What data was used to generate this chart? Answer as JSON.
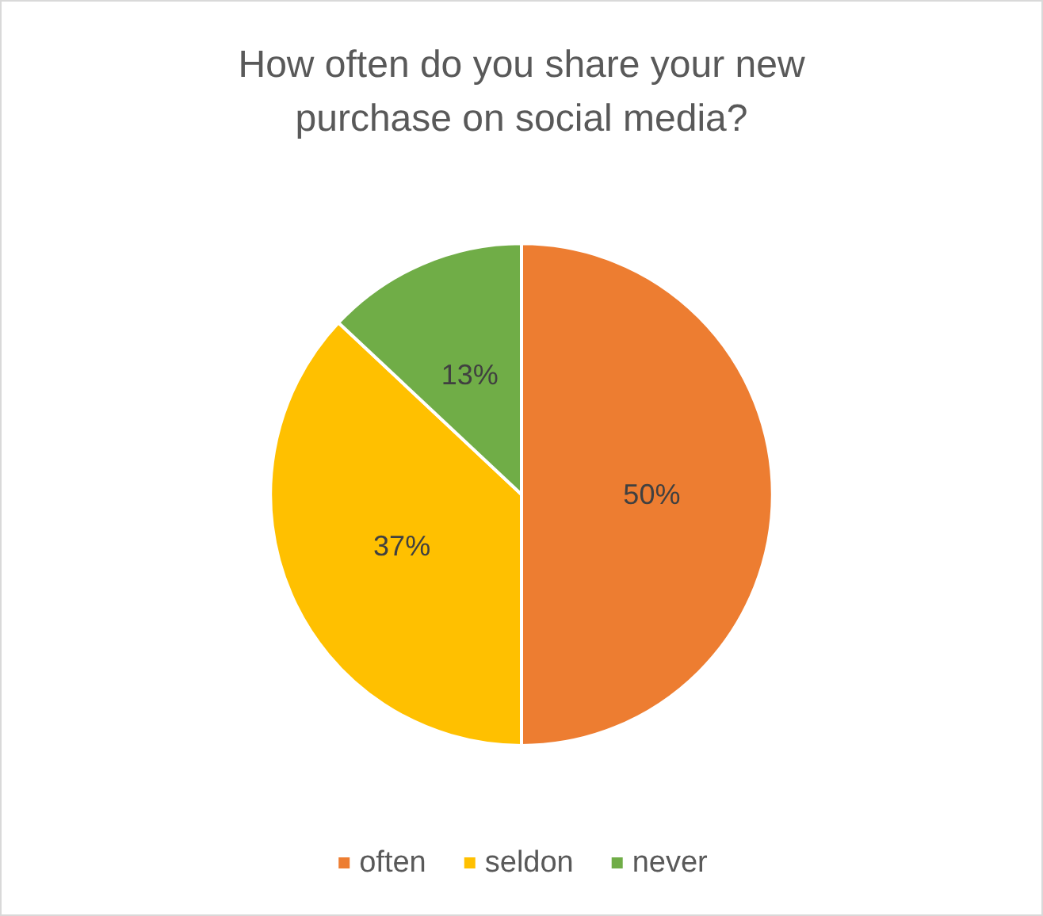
{
  "chart_data": {
    "type": "pie",
    "title": "How often do you share your new\npurchase on social media?",
    "categories": [
      "often",
      "seldon",
      "never"
    ],
    "values": [
      50,
      37,
      13
    ],
    "colors": [
      "#ed7d31",
      "#ffc000",
      "#70ad47"
    ],
    "value_labels": [
      "50%",
      "37%",
      "13%"
    ],
    "legend": "bottom"
  }
}
